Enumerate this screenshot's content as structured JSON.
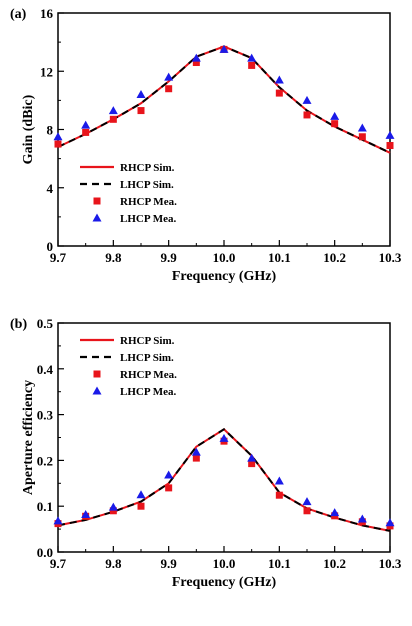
{
  "chart_data": [
    {
      "type": "line",
      "panel_label": "(a)",
      "xlabel": "Frequency (GHz)",
      "ylabel": "Gain (dBic)",
      "xlim": [
        9.7,
        10.3
      ],
      "ylim": [
        0,
        16
      ],
      "xticks": [
        9.7,
        9.8,
        9.9,
        10.0,
        10.1,
        10.2,
        10.3
      ],
      "xtick_labels": [
        "9.7",
        "9.8",
        "9.9",
        "10.0",
        "10.1",
        "10.2",
        "10.3"
      ],
      "yticks": [
        0,
        4,
        8,
        12,
        16
      ],
      "ytick_labels": [
        "0",
        "4",
        "8",
        "12",
        "16"
      ],
      "legend_position": "bottom-left",
      "series": [
        {
          "name": "RHCP Sim.",
          "style": "solid-line",
          "color": "#e8141b",
          "x": [
            9.7,
            9.75,
            9.8,
            9.85,
            9.9,
            9.95,
            10.0,
            10.05,
            10.1,
            10.15,
            10.2,
            10.25,
            10.3
          ],
          "y": [
            6.8,
            7.7,
            8.7,
            9.8,
            11.3,
            13.0,
            13.7,
            12.9,
            10.9,
            9.3,
            8.2,
            7.3,
            6.4
          ]
        },
        {
          "name": "LHCP Sim.",
          "style": "dashed-line",
          "color": "#000000",
          "x": [
            9.7,
            9.75,
            9.8,
            9.85,
            9.9,
            9.95,
            10.0,
            10.05,
            10.1,
            10.15,
            10.2,
            10.25,
            10.3
          ],
          "y": [
            6.8,
            7.7,
            8.7,
            9.8,
            11.3,
            13.0,
            13.7,
            12.9,
            10.9,
            9.3,
            8.2,
            7.3,
            6.4
          ]
        },
        {
          "name": "RHCP Mea.",
          "style": "square-marker",
          "color": "#e8141b",
          "x": [
            9.7,
            9.75,
            9.8,
            9.85,
            9.9,
            9.95,
            10.0,
            10.05,
            10.1,
            10.15,
            10.2,
            10.25,
            10.3
          ],
          "y": [
            7.0,
            7.8,
            8.7,
            9.3,
            10.8,
            12.6,
            13.5,
            12.4,
            10.5,
            9.0,
            8.4,
            7.5,
            6.9
          ]
        },
        {
          "name": "LHCP Mea.",
          "style": "triangle-marker",
          "color": "#1a1ae8",
          "x": [
            9.7,
            9.75,
            9.8,
            9.85,
            9.9,
            9.95,
            10.0,
            10.05,
            10.1,
            10.15,
            10.2,
            10.25,
            10.3
          ],
          "y": [
            7.5,
            8.3,
            9.3,
            10.4,
            11.6,
            12.9,
            13.5,
            12.9,
            11.4,
            10.0,
            8.9,
            8.1,
            7.6
          ]
        }
      ]
    },
    {
      "type": "line",
      "panel_label": "(b)",
      "xlabel": "Frequency (GHz)",
      "ylabel": "Aperture efficiency",
      "xlim": [
        9.7,
        10.3
      ],
      "ylim": [
        0.0,
        0.5
      ],
      "xticks": [
        9.7,
        9.8,
        9.9,
        10.0,
        10.1,
        10.2,
        10.3
      ],
      "xtick_labels": [
        "9.7",
        "9.8",
        "9.9",
        "10.0",
        "10.1",
        "10.2",
        "10.3"
      ],
      "yticks": [
        0.0,
        0.1,
        0.2,
        0.3,
        0.4,
        0.5
      ],
      "ytick_labels": [
        "0.0",
        "0.1",
        "0.2",
        "0.3",
        "0.4",
        "0.5"
      ],
      "legend_position": "top-left",
      "series": [
        {
          "name": "RHCP Sim.",
          "style": "solid-line",
          "color": "#e8141b",
          "x": [
            9.7,
            9.75,
            9.8,
            9.85,
            9.9,
            9.95,
            10.0,
            10.05,
            10.1,
            10.15,
            10.2,
            10.25,
            10.3
          ],
          "y": [
            0.058,
            0.07,
            0.088,
            0.11,
            0.15,
            0.23,
            0.268,
            0.21,
            0.13,
            0.095,
            0.075,
            0.058,
            0.046
          ]
        },
        {
          "name": "LHCP Sim.",
          "style": "dashed-line",
          "color": "#000000",
          "x": [
            9.7,
            9.75,
            9.8,
            9.85,
            9.9,
            9.95,
            10.0,
            10.05,
            10.1,
            10.15,
            10.2,
            10.25,
            10.3
          ],
          "y": [
            0.058,
            0.07,
            0.088,
            0.11,
            0.15,
            0.23,
            0.268,
            0.21,
            0.13,
            0.095,
            0.075,
            0.058,
            0.046
          ]
        },
        {
          "name": "RHCP Mea.",
          "style": "square-marker",
          "color": "#e8141b",
          "x": [
            9.7,
            9.75,
            9.8,
            9.85,
            9.9,
            9.95,
            10.0,
            10.05,
            10.1,
            10.15,
            10.2,
            10.25,
            10.3
          ],
          "y": [
            0.062,
            0.078,
            0.09,
            0.1,
            0.14,
            0.205,
            0.242,
            0.193,
            0.124,
            0.09,
            0.079,
            0.066,
            0.057
          ]
        },
        {
          "name": "LHCP Mea.",
          "style": "triangle-marker",
          "color": "#1a1ae8",
          "x": [
            9.7,
            9.75,
            9.8,
            9.85,
            9.9,
            9.95,
            10.0,
            10.05,
            10.1,
            10.15,
            10.2,
            10.25,
            10.3
          ],
          "y": [
            0.068,
            0.082,
            0.098,
            0.125,
            0.168,
            0.218,
            0.248,
            0.205,
            0.155,
            0.11,
            0.086,
            0.072,
            0.064
          ]
        }
      ]
    }
  ]
}
